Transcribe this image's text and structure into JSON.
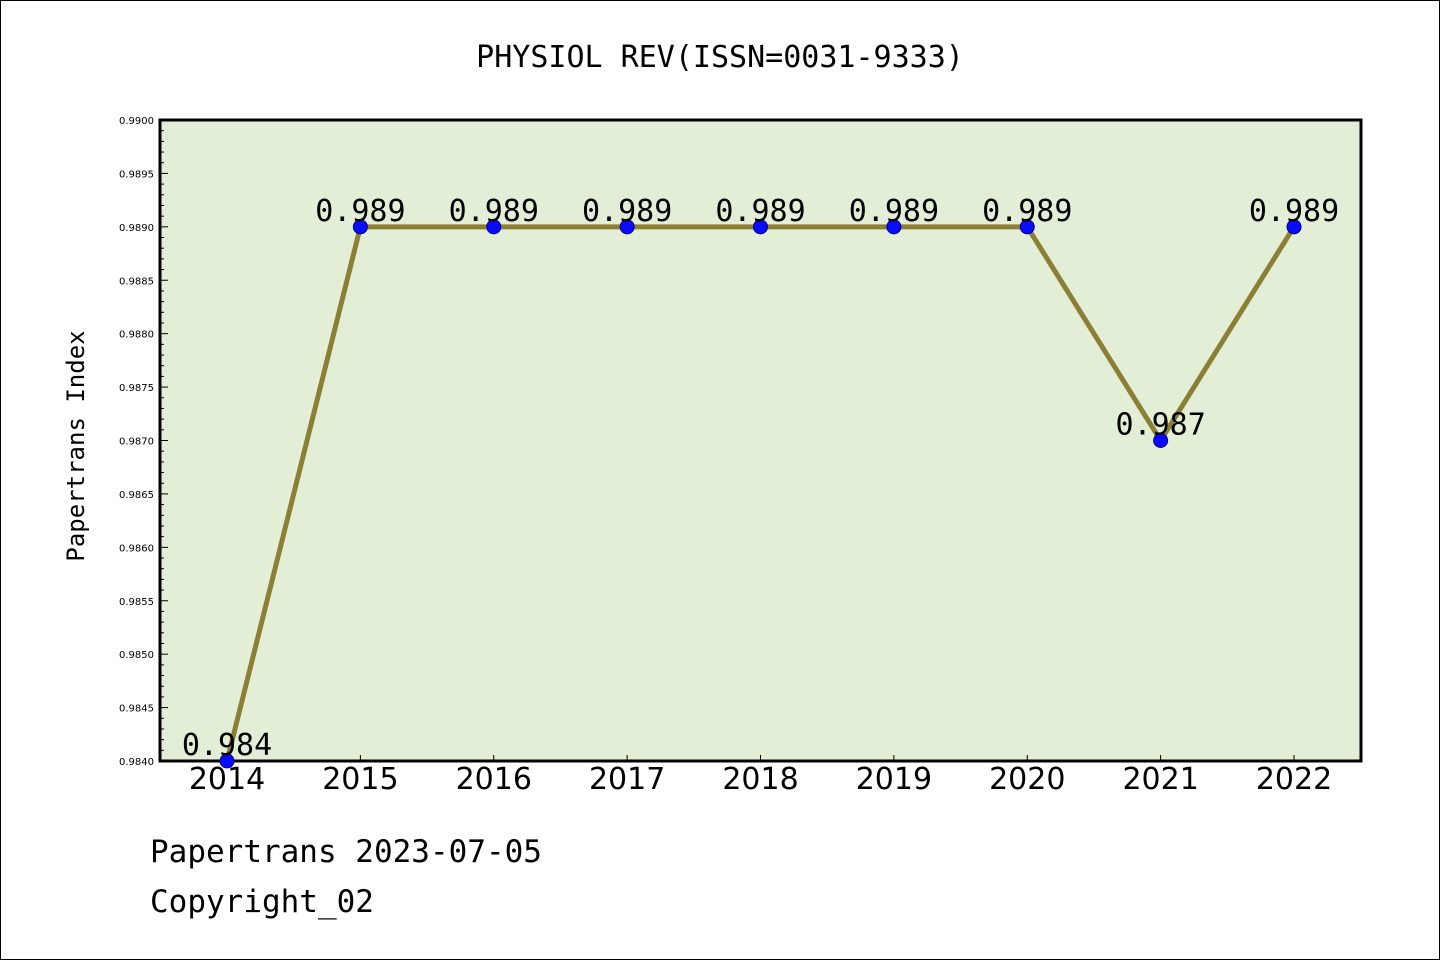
{
  "chart_data": {
    "type": "line",
    "title": "PHYSIOL REV(ISSN=0031-9333)",
    "xlabel": "",
    "ylabel": "Papertrans Index",
    "categories": [
      "2014",
      "2015",
      "2016",
      "2017",
      "2018",
      "2019",
      "2020",
      "2021",
      "2022"
    ],
    "series": [
      {
        "values": [
          0.984,
          0.989,
          0.989,
          0.989,
          0.989,
          0.989,
          0.989,
          0.987,
          0.989
        ],
        "data_labels": [
          "0.984",
          "0.989",
          "0.989",
          "0.989",
          "0.989",
          "0.989",
          "0.989",
          "0.987",
          "0.989"
        ]
      }
    ],
    "ylim": [
      0.984,
      0.99
    ],
    "yticks": [
      "0.9840",
      "0.9845",
      "0.9850",
      "0.9855",
      "0.9860",
      "0.9865",
      "0.9870",
      "0.9875",
      "0.9880",
      "0.9885",
      "0.9890",
      "0.9895",
      "0.9900"
    ],
    "grid": false,
    "legend": "none",
    "colors": {
      "plot_background": "#e2efd6",
      "line": "#8c7f35",
      "marker": "#0a0aff",
      "marker_edge": "#000080"
    }
  },
  "footer": {
    "line1": "Papertrans 2023-07-05",
    "line2": "Copyright_02"
  }
}
